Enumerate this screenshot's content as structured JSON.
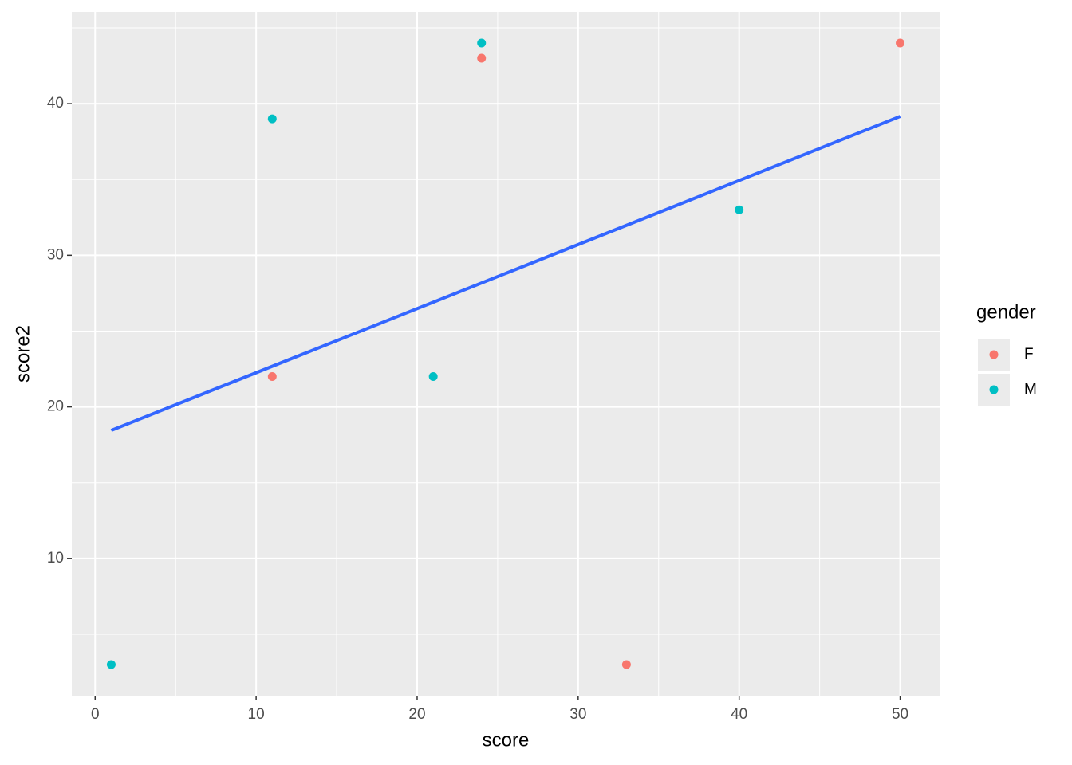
{
  "chart_data": {
    "type": "scatter",
    "x_label": "score",
    "y_label": "score2",
    "legend_title": "gender",
    "legend": "right",
    "series": [
      {
        "name": "F",
        "color": "#f8766d",
        "x": [
          11,
          24,
          33,
          50
        ],
        "values": [
          22,
          43,
          3,
          44
        ]
      },
      {
        "name": "M",
        "color": "#00bfc4",
        "x": [
          1,
          11,
          21,
          24,
          40
        ],
        "values": [
          3,
          39,
          22,
          44,
          33
        ]
      }
    ],
    "trend": {
      "x": [
        1,
        50
      ],
      "values": [
        18.45,
        39.16
      ],
      "color": "#3366ff"
    },
    "xlim": [
      -1.45,
      52.45
    ],
    "ylim": [
      0.95,
      46.05
    ],
    "xticks": [
      0,
      10,
      20,
      30,
      40,
      50
    ],
    "yticks": [
      10,
      20,
      30,
      40
    ],
    "x_minor": [
      5,
      15,
      25,
      35,
      45
    ],
    "y_minor": [
      5,
      15,
      25,
      35,
      45
    ],
    "grid": true
  }
}
